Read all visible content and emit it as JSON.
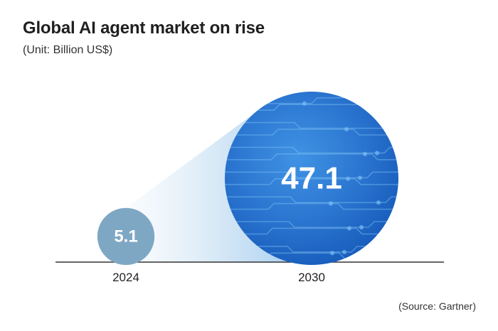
{
  "title": "Global AI agent market on rise",
  "subtitle": "(Unit: Billion US$)",
  "source": "(Source: Gartner)",
  "colors": {
    "small_bubble": "#7ea7c4",
    "large_bubble_light": "#3f8fe0",
    "large_bubble_dark": "#1559b8",
    "circuit": "#7fc0f5",
    "baseline": "#333333"
  },
  "chart_data": {
    "type": "bubble",
    "categories": [
      "2024",
      "2030"
    ],
    "values": [
      5.1,
      47.1
    ],
    "value_labels": [
      "5.1",
      "47.1"
    ],
    "unit": "Billion US$",
    "title": "Global AI agent market on rise",
    "subtitle": "(Unit: Billion US$)",
    "source": "(Source: Gartner)"
  }
}
